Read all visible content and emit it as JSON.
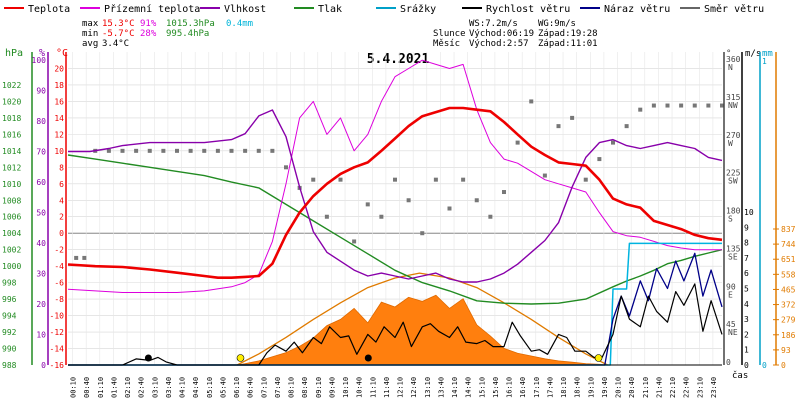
{
  "chart_data": {
    "type": "line",
    "title": "5.4.2021",
    "legend": [
      {
        "key": "temp",
        "label": "Teplota",
        "color": "#ee0000"
      },
      {
        "key": "dew",
        "label": "Přízemní teplota",
        "color": "#dd00dd"
      },
      {
        "key": "hum",
        "label": "Vlhkost",
        "color": "#8800aa"
      },
      {
        "key": "press",
        "label": "Tlak",
        "color": "#228b22"
      },
      {
        "key": "rain",
        "label": "Srážky",
        "color": "#00a0c8"
      },
      {
        "key": "wind",
        "label": "Rychlost větru",
        "color": "#000000"
      },
      {
        "key": "gust",
        "label": "Náraz větru",
        "color": "#000088"
      },
      {
        "key": "dir",
        "label": "Směr větru",
        "color": "#666666"
      }
    ],
    "stats": {
      "max": {
        "label": "max",
        "temp": "15.3°C",
        "hum": "91%",
        "press": "1015.3hPa",
        "rain": "0.4mm"
      },
      "min": {
        "label": "min",
        "temp": "-5.7°C",
        "hum": "28%",
        "press": "995.4hPa"
      },
      "avg": {
        "label": "avg",
        "temp": "3.4°C"
      }
    },
    "wind_info": {
      "ws": "WS:7.2m/s",
      "wg": "WG:9m/s"
    },
    "sun": {
      "label": "Slunce",
      "rise": "Východ:06:19",
      "set": "Západ:19:28"
    },
    "moon": {
      "label": "Měsíc",
      "rise": "Východ:2:57",
      "set": "Západ:11:01"
    },
    "axis_units": {
      "press": "hPa",
      "hum": "%",
      "temp": "°C",
      "dir": "°",
      "wind": "m/s",
      "rain": "mm",
      "time": "čas"
    },
    "axes": {
      "temp_range": [
        -16,
        22
      ],
      "press_ticks": [
        "988",
        "990",
        "992",
        "994",
        "996",
        "998",
        "1000",
        "1002",
        "1004",
        "1006",
        "1008",
        "1010",
        "1012",
        "1014",
        "1016",
        "1018",
        "1020",
        "1022"
      ],
      "hum_ticks": [
        "0",
        "10",
        "20",
        "30",
        "40",
        "50",
        "60",
        "70",
        "80",
        "90",
        "100"
      ],
      "temp_ticks": [
        "-16",
        "-14",
        "-12",
        "-10",
        "-8",
        "-6",
        "-4",
        "-2",
        "0",
        "2",
        "4",
        "6",
        "8",
        "10",
        "12",
        "14",
        "16",
        "18",
        "20"
      ],
      "dir_ticks": [
        {
          "deg": "360",
          "dir": "N"
        },
        {
          "deg": "315",
          "dir": "NW"
        },
        {
          "deg": "270",
          "dir": "W"
        },
        {
          "deg": "225",
          "dir": "SW"
        },
        {
          "deg": "180",
          "dir": "S"
        },
        {
          "deg": "135",
          "dir": "SE"
        },
        {
          "deg": "90",
          "dir": "E"
        },
        {
          "deg": "45",
          "dir": "NE"
        },
        {
          "deg": "0",
          "dir": ""
        }
      ],
      "wind_ticks": [
        "0",
        "1",
        "2",
        "3",
        "4",
        "5",
        "6",
        "7",
        "8",
        "9",
        "10"
      ],
      "rain_ticks": [
        "0",
        "1"
      ],
      "solar_ticks": [
        "0",
        "93",
        "186",
        "279",
        "372",
        "465",
        "558",
        "651",
        "744",
        "837"
      ],
      "time_ticks": [
        "00:10",
        "00:40",
        "01:10",
        "01:40",
        "02:10",
        "02:40",
        "03:10",
        "03:40",
        "04:10",
        "04:40",
        "05:10",
        "05:40",
        "06:10",
        "06:40",
        "07:10",
        "07:40",
        "08:10",
        "08:40",
        "09:10",
        "09:40",
        "10:10",
        "10:40",
        "11:10",
        "11:40",
        "12:10",
        "12:40",
        "13:10",
        "13:40",
        "14:10",
        "14:40",
        "15:10",
        "15:40",
        "16:10",
        "16:40",
        "17:10",
        "17:40",
        "18:10",
        "18:40",
        "19:10",
        "19:40",
        "20:10",
        "20:40",
        "21:10",
        "21:40",
        "22:10",
        "22:40",
        "23:10",
        "23:40"
      ]
    },
    "series": {
      "temperature": {
        "x": [
          0,
          1,
          2,
          3,
          4,
          5,
          5.5,
          6,
          6.5,
          7,
          7.5,
          8,
          8.5,
          9,
          9.5,
          10,
          10.5,
          11,
          11.5,
          12,
          12.5,
          13,
          13.5,
          14,
          14.5,
          15,
          15.5,
          16,
          16.5,
          17,
          17.5,
          18,
          18.5,
          19,
          19.5,
          20,
          20.5,
          21,
          21.5,
          22,
          22.5,
          23,
          23.5,
          24
        ],
        "y": [
          -3.8,
          -4,
          -4.1,
          -4.4,
          -4.8,
          -5.2,
          -5.4,
          -5.4,
          -5.3,
          -5.2,
          -3.7,
          -0.2,
          2.5,
          4.5,
          6,
          7.2,
          8,
          8.6,
          10,
          11.5,
          13,
          14.2,
          14.7,
          15.2,
          15.2,
          15,
          14.8,
          13.5,
          12,
          10.5,
          9.5,
          8.6,
          8.4,
          8.2,
          6.5,
          4.2,
          3.5,
          3.1,
          1.5,
          1,
          0.5,
          -0.2,
          -0.6,
          -0.8
        ]
      },
      "ground_temperature": {
        "x": [
          0,
          1,
          2,
          3,
          4,
          5,
          6,
          6.5,
          7,
          7.5,
          8,
          8.5,
          9,
          9.5,
          10,
          10.5,
          11,
          11.5,
          12,
          12.5,
          13,
          13.5,
          14,
          14.5,
          15,
          15.5,
          16,
          16.5,
          17,
          17.5,
          18,
          18.5,
          19,
          19.5,
          20,
          20.5,
          21,
          21.5,
          22,
          22.5,
          23,
          23.5,
          24
        ],
        "y": [
          -6.8,
          -7,
          -7.2,
          -7.2,
          -7.2,
          -7,
          -6.5,
          -6,
          -5,
          -1,
          6,
          14,
          16,
          12,
          14,
          10,
          12,
          16,
          19,
          20,
          21,
          20.5,
          20,
          20.5,
          15,
          11,
          9,
          8.5,
          7.5,
          6.5,
          6,
          5.5,
          5,
          2.5,
          0.2,
          -0.3,
          -0.5,
          -1,
          -1.5,
          -1.8,
          -2,
          -2,
          -2
        ]
      },
      "humidity": {
        "x": [
          0,
          0.8,
          1.5,
          2,
          3,
          4,
          5,
          6,
          6.5,
          7,
          7.5,
          8,
          8.5,
          9,
          9.5,
          10,
          10.5,
          11,
          11.5,
          12,
          12.5,
          13,
          13.5,
          14,
          14.5,
          15,
          15.5,
          16,
          16.5,
          17,
          17.5,
          18,
          18.5,
          19,
          19.5,
          20,
          20.5,
          21,
          21.5,
          22,
          22.5,
          23,
          23.5,
          24
        ],
        "y": [
          72,
          72,
          73,
          74,
          75,
          75,
          75,
          76,
          78,
          84,
          86,
          77,
          60,
          45,
          38,
          35,
          32,
          30,
          31,
          30,
          29,
          30,
          31,
          29,
          28,
          28,
          29,
          31,
          34,
          38,
          42,
          48,
          60,
          70,
          75,
          76,
          74,
          73,
          74,
          75,
          74,
          73,
          70,
          69
        ]
      },
      "pressure": {
        "x": [
          0,
          1,
          2,
          3,
          4,
          5,
          6,
          7,
          8,
          9,
          10,
          11,
          12,
          13,
          14,
          15,
          16,
          17,
          18,
          19,
          20,
          20.5,
          21,
          21.5,
          22,
          22.5,
          23,
          23.5,
          24
        ],
        "y": [
          1013.5,
          1013,
          1012.5,
          1012,
          1011.5,
          1011,
          1010.2,
          1009.5,
          1007.5,
          1005.5,
          1003.5,
          1001.5,
          999.5,
          998,
          997,
          995.8,
          995.5,
          995.4,
          995.5,
          996,
          997.5,
          998.2,
          998.8,
          999.5,
          1000.3,
          1000.7,
          1001.2,
          1001.6,
          1002
        ]
      },
      "rain": {
        "x": [
          0,
          19.9,
          20,
          20.5,
          20.6,
          21,
          21.5,
          22,
          22.5,
          23,
          23.5,
          24
        ],
        "y": [
          0,
          0,
          0.25,
          0.25,
          0.4,
          0.4,
          0.4,
          0.4,
          0.4,
          0.4,
          0.4,
          0.4
        ]
      },
      "wind_speed": {
        "x": [
          0,
          1,
          2,
          2.5,
          3,
          3.3,
          3.6,
          4,
          5,
          6,
          7,
          7.3,
          7.6,
          8,
          8.3,
          8.6,
          9,
          9.3,
          9.6,
          10,
          10.3,
          10.6,
          11,
          11.3,
          11.6,
          12,
          12.3,
          12.6,
          13,
          13.3,
          13.6,
          14,
          14.3,
          14.6,
          15,
          15.3,
          15.6,
          16,
          16.3,
          16.6,
          17,
          17.3,
          17.6,
          18,
          18.3,
          18.6,
          19,
          19.3,
          19.6,
          20,
          20.3,
          20.6,
          21,
          21.3,
          21.6,
          22,
          22.3,
          22.6,
          23,
          23.3,
          23.6,
          24
        ],
        "y": [
          0,
          0,
          0,
          0.4,
          0.3,
          0.5,
          0.2,
          0,
          0,
          0,
          0,
          0.8,
          1.3,
          0.9,
          1.5,
          0.8,
          1.8,
          1.4,
          2.5,
          1.8,
          1.9,
          0.7,
          2,
          1.5,
          2.5,
          1.8,
          2.8,
          1.2,
          2.5,
          2.7,
          2.2,
          1.8,
          2.5,
          1.5,
          1.4,
          1.6,
          1.2,
          1.2,
          2.8,
          1.9,
          0.9,
          1,
          0.7,
          2,
          1.8,
          0.9,
          0.9,
          0.5,
          0.5,
          2,
          4.5,
          3,
          2.5,
          4.5,
          3.5,
          2.8,
          4.8,
          3.9,
          5.3,
          2.2,
          4.2,
          2
        ]
      },
      "wind_gust": {
        "x": [
          0,
          19.7,
          20,
          20.3,
          20.6,
          21,
          21.3,
          21.6,
          22,
          22.3,
          22.6,
          23,
          23.3,
          23.6,
          24
        ],
        "y": [
          0,
          0,
          3,
          4.5,
          3.2,
          5.5,
          4.2,
          6.3,
          5,
          6.8,
          5.5,
          7.3,
          4.5,
          6.2,
          3.8
        ]
      },
      "solar": {
        "x": [
          6.2,
          6.5,
          7,
          7.5,
          8,
          8.5,
          9,
          9.5,
          10,
          10.5,
          11,
          11.5,
          12,
          12.5,
          13,
          13.5,
          14,
          14.5,
          15,
          15.5,
          16,
          16.5,
          17,
          17.5,
          18,
          18.5,
          19,
          19.5,
          19.8
        ],
        "y": [
          0,
          10,
          30,
          60,
          90,
          135,
          195,
          285,
          330,
          410,
          305,
          455,
          420,
          490,
          460,
          505,
          410,
          480,
          290,
          210,
          120,
          85,
          65,
          45,
          30,
          20,
          10,
          5,
          0
        ]
      },
      "theoretical_solar": {
        "x": [
          6.2,
          7,
          8,
          9,
          10,
          11,
          12,
          12.9,
          14,
          15,
          16,
          17,
          18,
          19,
          19.8
        ],
        "y": [
          0,
          80,
          200,
          330,
          450,
          560,
          630,
          665,
          630,
          560,
          450,
          330,
          200,
          80,
          0
        ]
      },
      "wind_direction": {
        "x": [
          0.3,
          0.6,
          1,
          1.5,
          2,
          2.5,
          3,
          3.5,
          4,
          4.5,
          5,
          5.5,
          6,
          6.5,
          7,
          7.5,
          8,
          8.5,
          9,
          9.5,
          10,
          10.5,
          11,
          11.5,
          12,
          12.5,
          13,
          13.5,
          14,
          14.5,
          15,
          15.5,
          16,
          16.5,
          17,
          17.5,
          18,
          18.5,
          19,
          19.5,
          20,
          20.5,
          21,
          21.5,
          22,
          22.5,
          23,
          23.5,
          24
        ],
        "y": [
          130,
          130,
          260,
          260,
          260,
          260,
          260,
          260,
          260,
          260,
          260,
          260,
          260,
          260,
          260,
          260,
          240,
          215,
          225,
          180,
          225,
          150,
          195,
          180,
          225,
          200,
          160,
          225,
          190,
          225,
          200,
          180,
          210,
          270,
          320,
          230,
          290,
          300,
          225,
          250,
          270,
          290,
          310,
          315,
          315,
          315,
          315,
          315,
          315
        ]
      }
    },
    "markers": {
      "sunrise_time": 6.33,
      "sunset_time": 19.47,
      "moonrise_time": 2.95,
      "moonset_time": 11.02
    }
  }
}
